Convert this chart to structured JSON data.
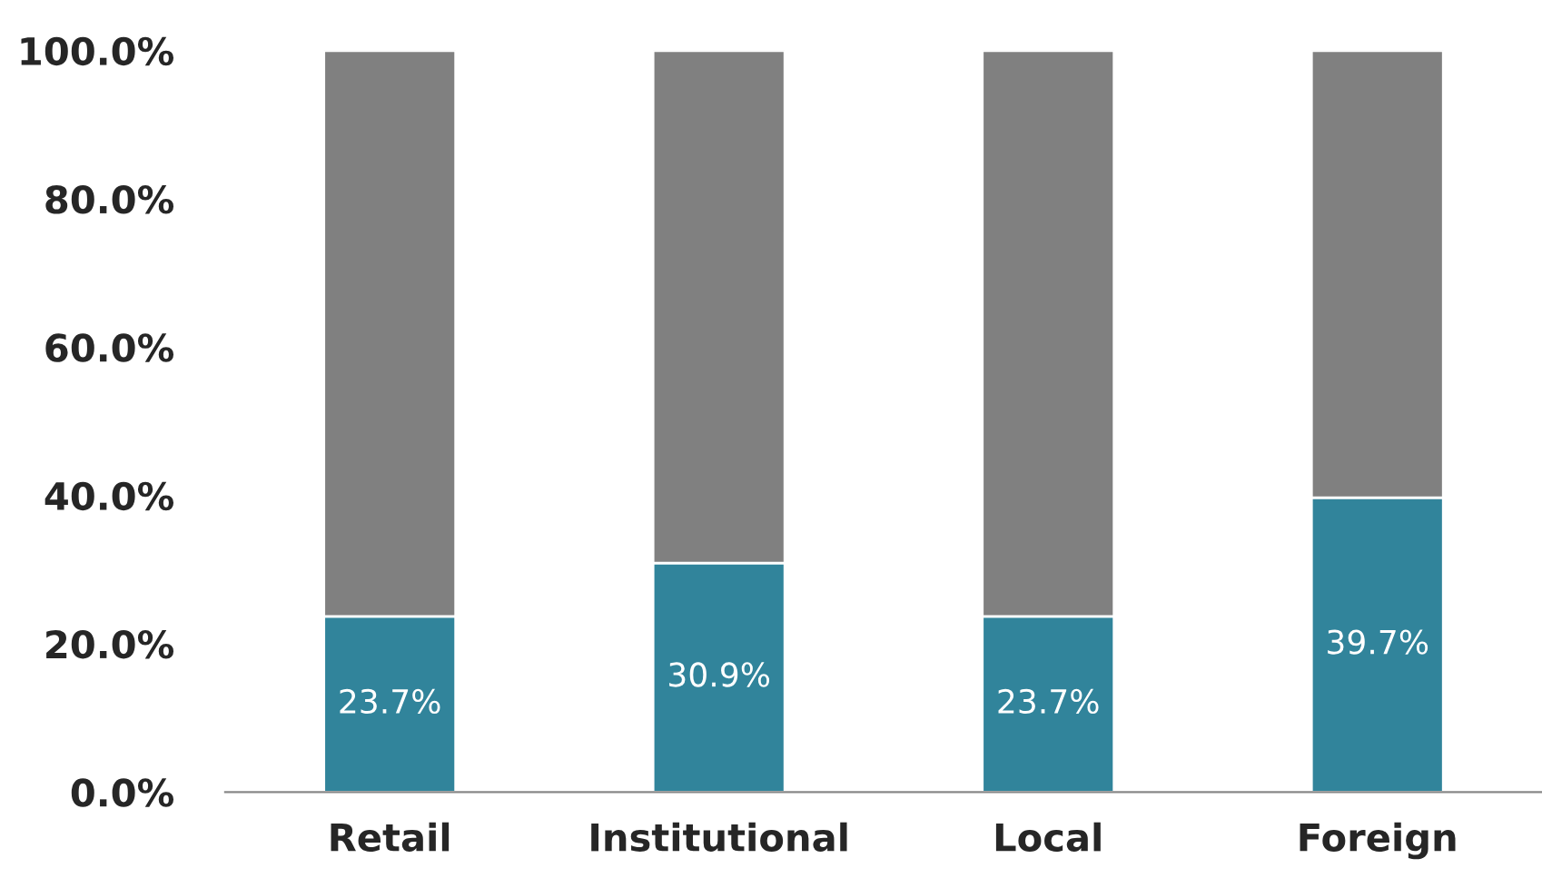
{
  "chart_data": {
    "type": "bar",
    "stacked": true,
    "categories": [
      "Retail",
      "Institutional",
      "Local",
      "Foreign"
    ],
    "series": [
      {
        "color": "#31849b",
        "values": [
          23.7,
          30.9,
          23.7,
          39.7
        ],
        "value_labels": [
          "23.7%",
          "30.9%",
          "23.7%",
          "39.7%"
        ]
      },
      {
        "color": "#808080",
        "values": [
          76.3,
          69.1,
          76.3,
          60.3
        ]
      }
    ],
    "ylim": [
      0,
      100
    ],
    "yticks": [
      {
        "value": 0,
        "label": "0.0%"
      },
      {
        "value": 20,
        "label": "20.0%"
      },
      {
        "value": 40,
        "label": "40.0%"
      },
      {
        "value": 60,
        "label": "60.0%"
      },
      {
        "value": 80,
        "label": "80.0%"
      },
      {
        "value": 100,
        "label": "100.0%"
      }
    ],
    "grid": false,
    "legend": false
  }
}
